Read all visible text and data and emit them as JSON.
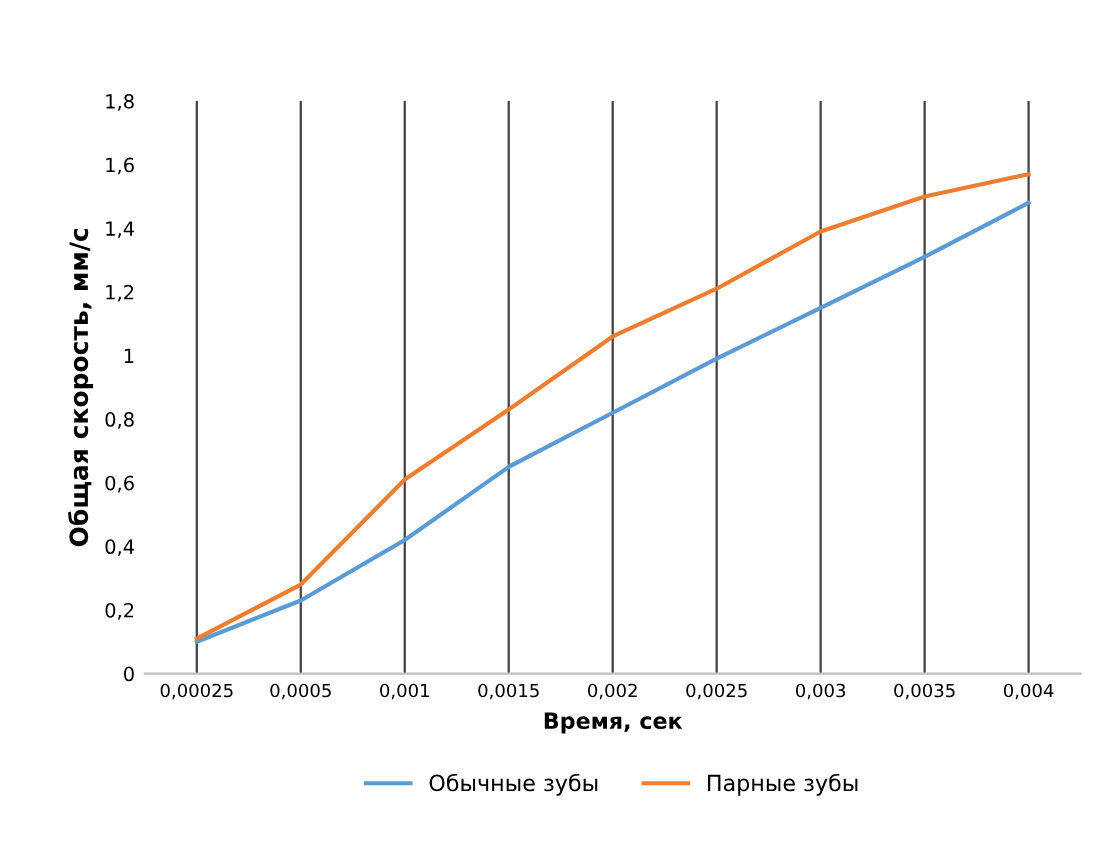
{
  "chart_data": {
    "type": "line",
    "xlabel": "Время, сек",
    "ylabel": "Общая скорость, мм/с",
    "categories": [
      "0,00025",
      "0,0005",
      "0,001",
      "0,0015",
      "0,002",
      "0,0025",
      "0,003",
      "0,0035",
      "0,004"
    ],
    "series": [
      {
        "name": "Обычные зубы",
        "color": "#5b9bd5",
        "values": [
          0.1,
          0.23,
          0.42,
          0.65,
          0.82,
          0.99,
          1.15,
          1.31,
          1.48
        ]
      },
      {
        "name": "Парные зубы",
        "color": "#ed7d31",
        "values": [
          0.11,
          0.28,
          0.61,
          0.83,
          1.06,
          1.21,
          1.39,
          1.5,
          1.57
        ]
      }
    ],
    "ylim": [
      0,
      1.8
    ],
    "yticks": [
      0,
      {
        "value": 0.2,
        "label": "0,2"
      },
      {
        "value": 0.4,
        "label": "0,4"
      },
      {
        "value": 0.6,
        "label": "0,6"
      },
      {
        "value": 0.8,
        "label": "0,8"
      },
      1,
      {
        "value": 1.2,
        "label": "1,2"
      },
      {
        "value": 1.4,
        "label": "1,4"
      },
      {
        "value": 1.6,
        "label": "1,6"
      },
      {
        "value": 1.8,
        "label": "1,8"
      }
    ],
    "grid": "x",
    "legend": "bottom",
    "marker": "none",
    "line_style": "solid"
  }
}
